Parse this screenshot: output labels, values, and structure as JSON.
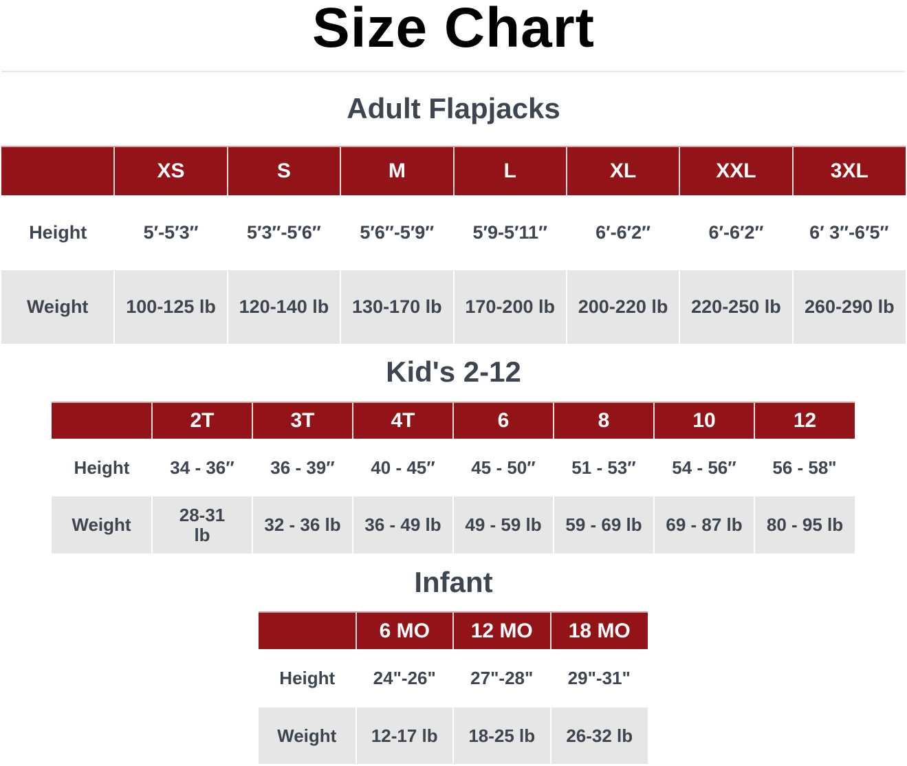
{
  "title": "Size Chart",
  "colors": {
    "header_bg": "#931418",
    "alt_row_bg": "#e6e6e6",
    "text": "#3d4550"
  },
  "adult": {
    "heading": "Adult Flapjacks",
    "sizes": [
      "XS",
      "S",
      "M",
      "L",
      "XL",
      "XXL",
      "3XL"
    ],
    "rows": [
      {
        "label": "Height",
        "values": [
          "5′-5′3″",
          "5′3″-5′6″",
          "5′6″-5′9″",
          "5′9-5′11″",
          "6′-6′2″",
          "6′-6′2″",
          "6′ 3″-6′5″"
        ]
      },
      {
        "label": "Weight",
        "values": [
          "100-125 lb",
          "120-140 lb",
          "130-170 lb",
          "170-200 lb",
          "200-220 lb",
          "220-250 lb",
          "260-290 lb"
        ]
      }
    ]
  },
  "kids": {
    "heading": "Kid's 2-12",
    "sizes": [
      "2T",
      "3T",
      "4T",
      "6",
      "8",
      "10",
      "12"
    ],
    "rows": [
      {
        "label": "Height",
        "values": [
          "34 - 36″",
          "36 - 39″",
          "40 - 45″",
          "45 - 50″",
          "51 - 53″",
          "54 - 56″",
          "56 - 58\""
        ]
      },
      {
        "label": "Weight",
        "values": [
          "28-31 lb",
          "32 - 36 lb",
          "36 - 49 lb",
          "49 - 59 lb",
          "59 - 69 lb",
          "69 - 87 lb",
          "80 - 95 lb"
        ]
      }
    ]
  },
  "infant": {
    "heading": "Infant",
    "sizes": [
      "6 MO",
      "12 MO",
      "18 MO"
    ],
    "rows": [
      {
        "label": "Height",
        "values": [
          "24\"-26\"",
          "27\"-28\"",
          "29\"-31\""
        ]
      },
      {
        "label": "Weight",
        "values": [
          "12-17 lb",
          "18-25 lb",
          "26-32 lb"
        ]
      }
    ]
  }
}
